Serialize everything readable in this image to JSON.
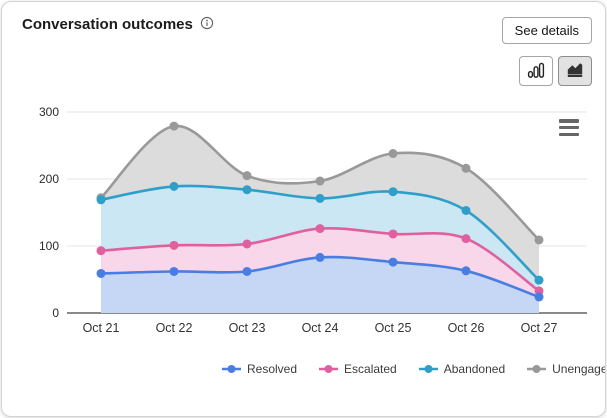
{
  "header": {
    "title": "Conversation outcomes",
    "info_icon": "info-circle-icon",
    "see_details_label": "See details"
  },
  "toolbar": {
    "buttons": [
      {
        "name": "column-chart-icon",
        "selected": false
      },
      {
        "name": "area-chart-icon",
        "selected": true
      }
    ]
  },
  "context_menu_icon": "hamburger-menu-icon",
  "chart_data": {
    "type": "area",
    "subtype": "areaspline-overlaid",
    "categories": [
      "Oct 21",
      "Oct 22",
      "Oct 23",
      "Oct 24",
      "Oct 25",
      "Oct 26",
      "Oct 27"
    ],
    "series": [
      {
        "name": "Unengaged",
        "color": "#999999",
        "fill": "#dcdcdc",
        "values": [
          172,
          279,
          205,
          197,
          238,
          216,
          109
        ]
      },
      {
        "name": "Abandoned",
        "color": "#2f9fc9",
        "fill": "#cbe7f3",
        "values": [
          169,
          189,
          184,
          171,
          181,
          153,
          49
        ]
      },
      {
        "name": "Escalated",
        "color": "#e0609f",
        "fill": "#f7d7e9",
        "values": [
          93,
          101,
          103,
          126,
          118,
          111,
          33
        ]
      },
      {
        "name": "Resolved",
        "color": "#4a7de2",
        "fill": "#c6d6f5",
        "values": [
          59,
          62,
          62,
          83,
          76,
          63,
          24
        ]
      }
    ],
    "legend": [
      "Resolved",
      "Escalated",
      "Abandoned",
      "Unengaged"
    ],
    "legend_position": "bottom",
    "ylim": [
      0,
      300
    ],
    "yticks": [
      0,
      100,
      200,
      300
    ],
    "grid": true,
    "axis_color": "#161616",
    "grid_color": "#e6e6e6",
    "tick_label_color": "#2b2b2b",
    "category_label_color": "#333333"
  }
}
